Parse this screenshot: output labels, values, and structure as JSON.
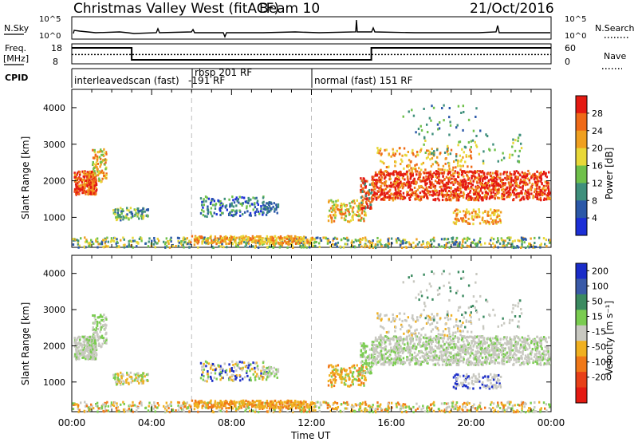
{
  "header": {
    "station": "Christmas Valley West (fitACF)",
    "beam": "Beam 10",
    "date": "21/Oct/2016"
  },
  "top_panels": {
    "nsky_label": "N.Sky",
    "nsky_ticks": [
      "10^5",
      "10^0"
    ],
    "nsearch_label": "N.Search",
    "nsearch_ticks": [
      "10^5",
      "10^0"
    ],
    "freq_label": "Freq.",
    "freq_unit": "[MHz]",
    "freq_ticks": [
      "18",
      "8"
    ],
    "nave_label": "Nave",
    "nave_ticks": [
      "60",
      "0"
    ],
    "cpid_label": "CPID",
    "cpid_segments": [
      {
        "label": "interleavedscan (fast)",
        "start": 0
      },
      {
        "label": "rbsp 201 RF",
        "start": 6
      },
      {
        "label": "-191 RF",
        "start": 6
      },
      {
        "label": "normal (fast) 151 RF",
        "start": 12
      }
    ],
    "freq_series": {
      "x": [
        0,
        3,
        3,
        15,
        15,
        24
      ],
      "y": [
        16,
        16,
        10,
        10,
        16,
        16
      ]
    },
    "nave_series": {
      "x": [
        0,
        24
      ],
      "y": [
        28,
        28
      ]
    }
  },
  "chart_data": [
    {
      "type": "heatmap",
      "name": "power",
      "ylabel": "Slant Range [km]",
      "xlabel": "",
      "ylim": [
        180,
        4500
      ],
      "yticks": [
        1000,
        2000,
        3000,
        4000
      ],
      "xlim": [
        0,
        24
      ],
      "colorbar_label": "Power [dB]",
      "colorbar_ticks": [
        "4",
        "8",
        "12",
        "16",
        "20",
        "24",
        "28"
      ],
      "colorbar_colors": [
        "#1c2fd6",
        "#2b58a8",
        "#3f8f7c",
        "#6fc04a",
        "#e8d838",
        "#f0a020",
        "#ef6a18",
        "#e41a12"
      ]
    },
    {
      "type": "heatmap",
      "name": "velocity",
      "ylabel": "Slant Range [km]",
      "xlabel": "Time UT",
      "ylim": [
        180,
        4500
      ],
      "yticks": [
        1000,
        2000,
        3000,
        4000
      ],
      "xlim": [
        0,
        24
      ],
      "xticks": [
        "00:00",
        "04:00",
        "08:00",
        "12:00",
        "16:00",
        "20:00",
        "00:00"
      ],
      "colorbar_label": "Velocity [m s⁻¹]",
      "colorbar_ticks": [
        "200",
        "100",
        "50",
        "15",
        "-15",
        "-50",
        "-100",
        "-200"
      ],
      "colorbar_colors": [
        "#1a2cc8",
        "#3a5aa8",
        "#3b8a60",
        "#7acc50",
        "#c8c8c0",
        "#f0b020",
        "#f07818",
        "#e84018",
        "#e41a12"
      ]
    }
  ]
}
